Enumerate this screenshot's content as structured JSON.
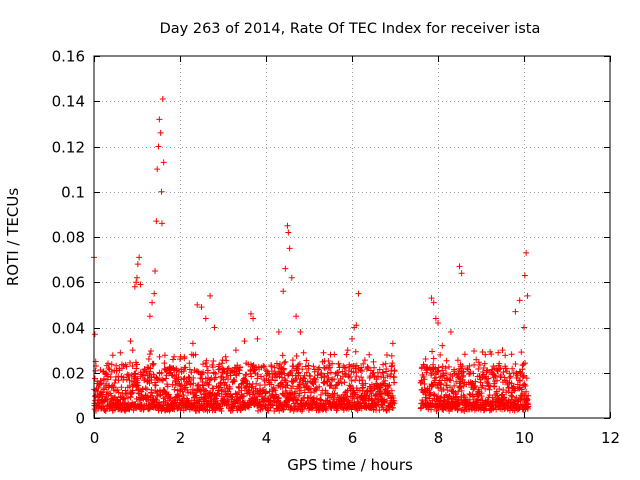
{
  "chart_data": {
    "type": "scatter",
    "title": "Day 263 of 2014, Rate Of TEC Index for receiver ista",
    "xlabel": "GPS time / hours",
    "ylabel": "ROTI / TECUs",
    "xlim": [
      0,
      12
    ],
    "ylim": [
      0,
      0.16
    ],
    "x_ticks": [
      0,
      2,
      4,
      6,
      8,
      10,
      12
    ],
    "x_tick_labels": [
      "0",
      "2",
      "4",
      "6",
      "8",
      "10",
      "12"
    ],
    "y_ticks": [
      0,
      0.02,
      0.04,
      0.06,
      0.08,
      0.1,
      0.12,
      0.14,
      0.16
    ],
    "y_tick_labels": [
      "0",
      "0.02",
      "0.04",
      "0.06",
      "0.08",
      "0.1",
      "0.12",
      "0.14",
      "0.16"
    ],
    "grid": true,
    "marker": "+",
    "marker_color": "#ff0000",
    "series": [
      {
        "name": "ROTI",
        "note": "dense background cloud 0.003-0.022 TECU/min from 0 to 7 h and 7.6 to 10.1 h (gap ~7.0-7.6 h); representative peak points listed",
        "points": [
          [
            0.0,
            0.071
          ],
          [
            0.02,
            0.037
          ],
          [
            0.04,
            0.025
          ],
          [
            0.85,
            0.034
          ],
          [
            0.9,
            0.03
          ],
          [
            0.95,
            0.058
          ],
          [
            0.98,
            0.06
          ],
          [
            1.0,
            0.062
          ],
          [
            1.02,
            0.068
          ],
          [
            1.05,
            0.071
          ],
          [
            1.08,
            0.059
          ],
          [
            1.3,
            0.045
          ],
          [
            1.35,
            0.051
          ],
          [
            1.4,
            0.055
          ],
          [
            1.42,
            0.065
          ],
          [
            1.45,
            0.087
          ],
          [
            1.47,
            0.11
          ],
          [
            1.5,
            0.12
          ],
          [
            1.52,
            0.132
          ],
          [
            1.55,
            0.126
          ],
          [
            1.57,
            0.1
          ],
          [
            1.6,
            0.141
          ],
          [
            1.62,
            0.113
          ],
          [
            1.58,
            0.086
          ],
          [
            2.1,
            0.027
          ],
          [
            2.3,
            0.033
          ],
          [
            2.4,
            0.05
          ],
          [
            2.5,
            0.049
          ],
          [
            2.6,
            0.044
          ],
          [
            2.7,
            0.054
          ],
          [
            2.8,
            0.04
          ],
          [
            3.3,
            0.03
          ],
          [
            3.5,
            0.034
          ],
          [
            3.65,
            0.046
          ],
          [
            3.7,
            0.044
          ],
          [
            3.8,
            0.035
          ],
          [
            4.3,
            0.038
          ],
          [
            4.4,
            0.056
          ],
          [
            4.45,
            0.066
          ],
          [
            4.5,
            0.085
          ],
          [
            4.52,
            0.082
          ],
          [
            4.55,
            0.075
          ],
          [
            4.6,
            0.062
          ],
          [
            4.7,
            0.045
          ],
          [
            4.8,
            0.038
          ],
          [
            5.5,
            0.028
          ],
          [
            5.9,
            0.03
          ],
          [
            6.0,
            0.035
          ],
          [
            6.05,
            0.04
          ],
          [
            6.1,
            0.041
          ],
          [
            6.15,
            0.055
          ],
          [
            6.5,
            0.02
          ],
          [
            6.95,
            0.033
          ],
          [
            7.85,
            0.053
          ],
          [
            7.9,
            0.051
          ],
          [
            7.95,
            0.044
          ],
          [
            8.0,
            0.042
          ],
          [
            8.1,
            0.032
          ],
          [
            8.3,
            0.038
          ],
          [
            8.5,
            0.067
          ],
          [
            8.55,
            0.064
          ],
          [
            9.1,
            0.028
          ],
          [
            9.5,
            0.03
          ],
          [
            9.8,
            0.047
          ],
          [
            9.9,
            0.052
          ],
          [
            10.0,
            0.04
          ],
          [
            10.02,
            0.063
          ],
          [
            10.05,
            0.073
          ],
          [
            10.08,
            0.054
          ]
        ]
      }
    ]
  }
}
